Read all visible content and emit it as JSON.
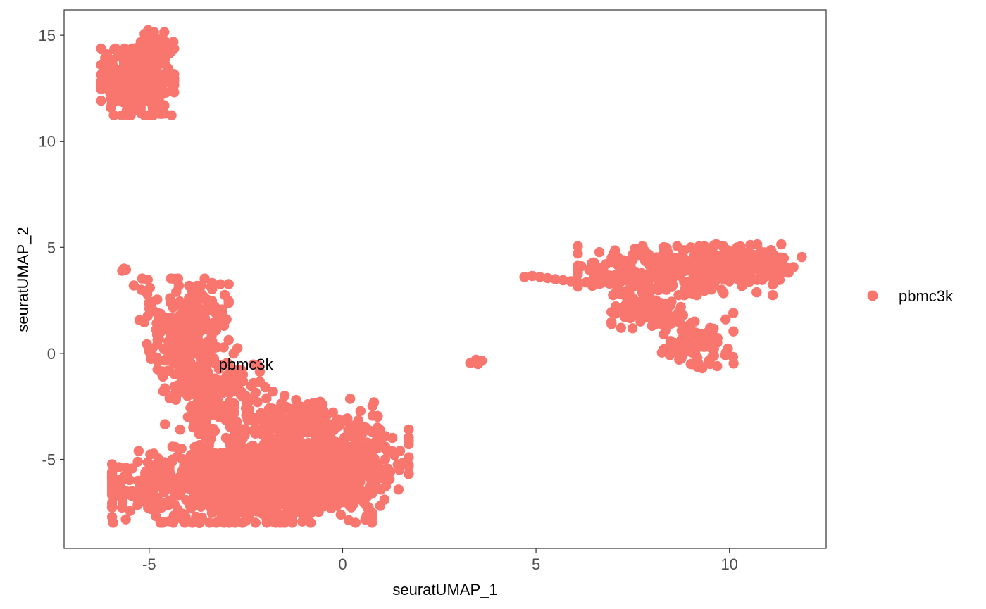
{
  "chart_data": {
    "type": "scatter",
    "xlabel": "seuratUMAP_1",
    "ylabel": "seuratUMAP_2",
    "xlim": [
      -7.2,
      12.5
    ],
    "ylim": [
      -9.2,
      16.2
    ],
    "x_ticks": [
      -5,
      0,
      5,
      10
    ],
    "y_ticks": [
      -5,
      0,
      5,
      10,
      15
    ],
    "x_tick_labels": [
      "-5",
      "0",
      "5",
      "10"
    ],
    "y_tick_labels": [
      "-5",
      "0",
      "5",
      "10",
      "15"
    ],
    "grid": false,
    "legend": {
      "position": "right",
      "entries": [
        {
          "label": "pbmc3k",
          "color": "#F8766D"
        }
      ]
    },
    "annotation": {
      "text": "pbmc3k",
      "x": -2.5,
      "y": -0.5
    },
    "series": [
      {
        "name": "pbmc3k",
        "color": "#F8766D",
        "clusters": [
          {
            "cx": -5.3,
            "cy": 12.8,
            "sx": 0.45,
            "sy": 0.75,
            "n": 420
          },
          {
            "cx": -4.9,
            "cy": 14.3,
            "sx": 0.25,
            "sy": 0.45,
            "n": 60
          },
          {
            "cx": -4.1,
            "cy": 0.8,
            "sx": 0.55,
            "sy": 1.3,
            "n": 260
          },
          {
            "cx": -3.4,
            "cy": -1.6,
            "sx": 0.6,
            "sy": 0.9,
            "n": 160
          },
          {
            "cx": -2.6,
            "cy": -6.2,
            "sx": 1.6,
            "sy": 0.85,
            "n": 900
          },
          {
            "cx": -0.6,
            "cy": -5.3,
            "sx": 1.1,
            "sy": 0.9,
            "n": 500
          },
          {
            "cx": -1.4,
            "cy": -3.4,
            "sx": 1.1,
            "sy": 0.7,
            "n": 180
          },
          {
            "cx": 8.6,
            "cy": 3.9,
            "sx": 1.2,
            "sy": 0.55,
            "n": 320
          },
          {
            "cx": 10.4,
            "cy": 4.3,
            "sx": 0.7,
            "sy": 0.4,
            "n": 120
          },
          {
            "cx": 8.0,
            "cy": 2.1,
            "sx": 0.5,
            "sy": 0.5,
            "n": 90
          },
          {
            "cx": 9.2,
            "cy": 0.4,
            "sx": 0.45,
            "sy": 0.5,
            "n": 80
          }
        ],
        "points": [
          [
            -5.7,
            3.9
          ],
          [
            -5.65,
            4.0
          ],
          [
            -5.6,
            3.95
          ],
          [
            -5.4,
            3.2
          ],
          [
            -5.2,
            3.0
          ],
          [
            -5.05,
            2.8
          ],
          [
            4.7,
            3.6
          ],
          [
            4.9,
            3.65
          ],
          [
            5.1,
            3.6
          ],
          [
            5.3,
            3.55
          ],
          [
            5.5,
            3.5
          ],
          [
            5.7,
            3.45
          ],
          [
            5.9,
            3.4
          ],
          [
            6.1,
            3.3
          ],
          [
            6.3,
            3.35
          ],
          [
            6.5,
            3.3
          ],
          [
            6.7,
            3.35
          ],
          [
            6.9,
            3.4
          ],
          [
            3.3,
            -0.45
          ],
          [
            3.4,
            -0.4
          ],
          [
            3.5,
            -0.5
          ],
          [
            3.6,
            -0.35
          ],
          [
            3.45,
            -0.3
          ],
          [
            -2.6,
            -0.9
          ],
          [
            -2.3,
            -1.4
          ],
          [
            -2.0,
            -1.6
          ],
          [
            -1.8,
            -1.8
          ],
          [
            -1.5,
            -2.0
          ],
          [
            -1.2,
            -2.2
          ],
          [
            -0.9,
            -2.4
          ],
          [
            -0.6,
            -2.6
          ],
          [
            -0.4,
            -2.9
          ],
          [
            -0.1,
            -3.2
          ],
          [
            0.3,
            -3.4
          ],
          [
            0.6,
            -3.5
          ],
          [
            0.9,
            -3.5
          ],
          [
            1.1,
            -3.9
          ],
          [
            1.1,
            -4.4
          ],
          [
            1.1,
            -5.0
          ],
          [
            1.0,
            -5.6
          ],
          [
            0.7,
            -6.3
          ],
          [
            0.5,
            -6.8
          ],
          [
            0.2,
            -7.1
          ],
          [
            -0.3,
            -7.3
          ],
          [
            -0.8,
            -7.5
          ],
          [
            -1.3,
            -7.7
          ],
          [
            -1.9,
            -7.9
          ],
          [
            -2.5,
            -7.9
          ],
          [
            -3.2,
            -7.9
          ],
          [
            -3.7,
            -8.0
          ],
          [
            -4.3,
            -7.6
          ],
          [
            -4.9,
            -7.3
          ],
          [
            -5.3,
            -6.9
          ],
          [
            -5.6,
            -6.5
          ],
          [
            -5.7,
            -6.0
          ],
          [
            -5.6,
            -5.4
          ],
          [
            -4.4,
            -4.4
          ],
          [
            -4.2,
            -3.6
          ],
          [
            -4.0,
            -3.0
          ],
          [
            -4.6,
            -1.8
          ],
          [
            -4.8,
            -0.2
          ],
          [
            -4.6,
            1.7
          ],
          [
            -4.3,
            2.9
          ],
          [
            -3.9,
            3.0
          ],
          [
            -3.6,
            2.7
          ],
          [
            -3.3,
            2.2
          ],
          [
            -3.1,
            1.8
          ],
          [
            -3.0,
            1.6
          ],
          [
            7.1,
            3.1
          ],
          [
            7.3,
            3.9
          ],
          [
            7.5,
            4.4
          ],
          [
            7.9,
            4.6
          ],
          [
            8.4,
            4.8
          ],
          [
            9.0,
            5.0
          ],
          [
            9.6,
            5.1
          ],
          [
            10.2,
            5.0
          ],
          [
            10.8,
            4.8
          ],
          [
            11.2,
            4.5
          ],
          [
            11.4,
            4.1
          ],
          [
            11.3,
            3.7
          ],
          [
            10.9,
            3.6
          ],
          [
            10.4,
            3.6
          ],
          [
            10.0,
            3.4
          ],
          [
            9.8,
            3.0
          ],
          [
            10.1,
            1.9
          ],
          [
            9.9,
            1.6
          ],
          [
            9.5,
            1.2
          ],
          [
            9.6,
            0.2
          ],
          [
            9.5,
            -0.5
          ],
          [
            9.3,
            -0.7
          ],
          [
            9.0,
            -0.5
          ],
          [
            8.7,
            -0.3
          ],
          [
            8.6,
            0.4
          ],
          [
            8.3,
            0.9
          ],
          [
            8.0,
            1.3
          ],
          [
            7.7,
            1.5
          ],
          [
            7.3,
            1.7
          ],
          [
            7.2,
            2.0
          ],
          [
            7.5,
            2.5
          ],
          [
            8.8,
            1.8
          ],
          [
            8.5,
            1.4
          ],
          [
            9.1,
            1.5
          ],
          [
            -3.5,
            -3.7
          ],
          [
            -3.8,
            -3.3
          ],
          [
            -3.2,
            -3.0
          ],
          [
            -2.8,
            -2.8
          ],
          [
            -2.5,
            -2.6
          ],
          [
            -2.2,
            -2.3
          ],
          [
            -1.9,
            -2.6
          ],
          [
            -1.6,
            -2.9
          ],
          [
            -1.1,
            -2.5
          ],
          [
            -0.7,
            -3.0
          ],
          [
            -0.3,
            -3.4
          ]
        ]
      }
    ]
  }
}
